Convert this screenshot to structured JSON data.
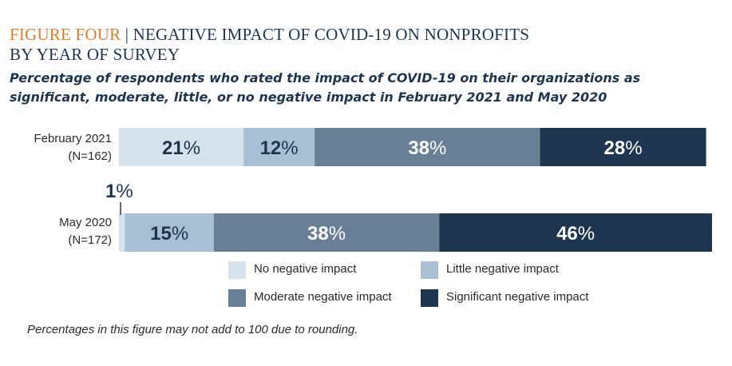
{
  "header": {
    "figure_label": "FIGURE FOUR",
    "separator": "|",
    "title_line1": "NEGATIVE IMPACT OF COVID-19 ON NONPROFITS",
    "title_line2": "BY YEAR OF SURVEY",
    "subtitle": "Percentage of respondents who rated the impact of COVID-19 on their organizations as significant, moderate, little, or no negative impact in February 2021 and May 2020"
  },
  "chart_data": {
    "type": "bar",
    "orientation": "horizontal",
    "stacked": true,
    "title": "NEGATIVE IMPACT OF COVID-19 ON NONPROFITS BY YEAR OF SURVEY",
    "categories": [
      {
        "name": "February 2021",
        "n": "(N=162)"
      },
      {
        "name": "May 2020",
        "n": "(N=172)"
      }
    ],
    "series": [
      {
        "name": "No negative impact",
        "color": "#d6e2ec",
        "label_color": "#1e3550",
        "values": [
          21,
          1
        ]
      },
      {
        "name": "Little negative impact",
        "color": "#a9bfd3",
        "label_color": "#1e3550",
        "values": [
          12,
          15
        ]
      },
      {
        "name": "Moderate negative impact",
        "color": "#687f96",
        "label_color": "#ffffff",
        "values": [
          38,
          38
        ]
      },
      {
        "name": "Significant negative impact",
        "color": "#1e3550",
        "label_color": "#ffffff",
        "values": [
          28,
          46
        ]
      }
    ],
    "value_suffix": "%",
    "legend_position": "bottom"
  },
  "note": "Percentages in this figure may not add to 100 due to rounding."
}
